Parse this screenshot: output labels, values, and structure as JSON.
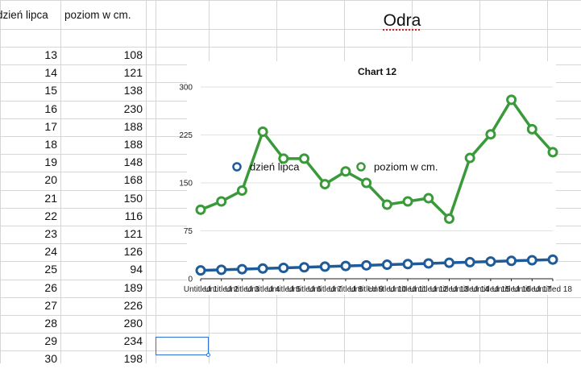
{
  "sheet": {
    "title": "Odra",
    "headers": [
      "dzień lipca",
      "poziom w cm."
    ],
    "rows": [
      [
        13,
        108
      ],
      [
        14,
        121
      ],
      [
        15,
        138
      ],
      [
        16,
        230
      ],
      [
        17,
        188
      ],
      [
        18,
        188
      ],
      [
        19,
        148
      ],
      [
        20,
        168
      ],
      [
        21,
        150
      ],
      [
        22,
        116
      ],
      [
        23,
        121
      ],
      [
        24,
        126
      ],
      [
        25,
        94
      ],
      [
        26,
        189
      ],
      [
        27,
        226
      ],
      [
        28,
        280
      ],
      [
        29,
        234
      ],
      [
        30,
        198
      ]
    ]
  },
  "chart_data": {
    "type": "line",
    "title": "Chart 12",
    "categories": [
      "Untitled 1",
      "Untitled 2",
      "Untitled 3",
      "Untitled 4",
      "Untitled 5",
      "Untitled 6",
      "Untitled 7",
      "Untitled 8",
      "Untitled 9",
      "Untitled 10",
      "Untitled 11",
      "Untitled 12",
      "Untitled 13",
      "Untitled 14",
      "Untitled 15",
      "Untitled 16",
      "Untitled 17",
      "Untitled 18"
    ],
    "series": [
      {
        "name": "dzień lipca",
        "color": "#1f5b99",
        "values": [
          13,
          14,
          15,
          16,
          17,
          18,
          19,
          20,
          21,
          22,
          23,
          24,
          25,
          26,
          27,
          28,
          29,
          30
        ]
      },
      {
        "name": "poziom w cm.",
        "color": "#3a9a3a",
        "values": [
          108,
          121,
          138,
          230,
          188,
          188,
          148,
          168,
          150,
          116,
          121,
          126,
          94,
          189,
          226,
          280,
          234,
          198
        ]
      }
    ],
    "ylim": [
      0,
      300
    ],
    "yticks": [
      "0",
      "75",
      "150",
      "225",
      "300"
    ],
    "grid": true,
    "legend": "inside-top"
  }
}
